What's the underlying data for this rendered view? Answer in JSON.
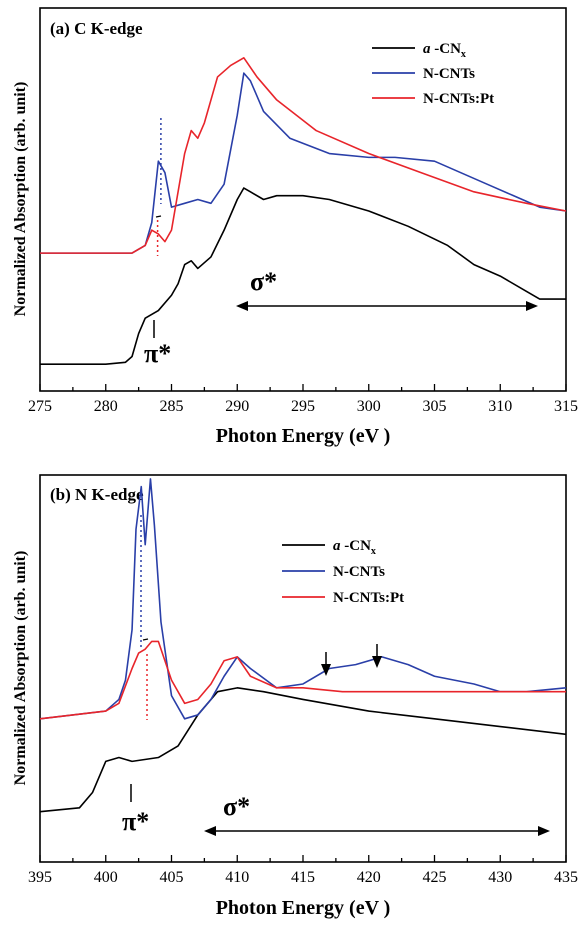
{
  "chart_data": [
    {
      "type": "line",
      "panel_label": "(a) C K-edge",
      "xlabel": "Photon Energy (eV )",
      "ylabel": "Normalized Absorption (arb. unit)",
      "xlim": [
        275,
        315
      ],
      "ylim": [
        0,
        1
      ],
      "xticks": [
        "275",
        "280",
        "285",
        "290",
        "295",
        "300",
        "305",
        "310",
        "315"
      ],
      "grid": false,
      "legend_position": "top-right",
      "annotations": {
        "pi_star": "π*",
        "sigma_star": "σ*"
      },
      "series": [
        {
          "name": "a -CNx",
          "color": "#000000",
          "x": [
            275,
            280,
            281.5,
            282,
            282.5,
            283,
            284,
            285,
            285.5,
            286,
            286.5,
            287,
            288,
            289,
            290,
            290.5,
            291,
            292,
            293,
            295,
            297,
            300,
            303,
            306,
            308,
            310,
            312,
            313,
            314,
            315
          ],
          "y": [
            0.07,
            0.07,
            0.075,
            0.09,
            0.15,
            0.19,
            0.21,
            0.25,
            0.28,
            0.33,
            0.34,
            0.32,
            0.35,
            0.42,
            0.5,
            0.53,
            0.52,
            0.5,
            0.51,
            0.51,
            0.5,
            0.47,
            0.43,
            0.38,
            0.33,
            0.3,
            0.26,
            0.24,
            0.24,
            0.24
          ]
        },
        {
          "name": "N-CNTs",
          "color": "#2a3fa8",
          "x": [
            275,
            282,
            283,
            283.5,
            284,
            284.5,
            285,
            286,
            287,
            288,
            289,
            290,
            290.5,
            291,
            292,
            294,
            297,
            300,
            302,
            305,
            307,
            309,
            311,
            313,
            315
          ],
          "y": [
            0.36,
            0.36,
            0.38,
            0.44,
            0.6,
            0.57,
            0.48,
            0.49,
            0.5,
            0.49,
            0.54,
            0.72,
            0.83,
            0.81,
            0.73,
            0.66,
            0.62,
            0.61,
            0.61,
            0.6,
            0.57,
            0.54,
            0.51,
            0.48,
            0.47
          ]
        },
        {
          "name": "N-CNTs:Pt",
          "color": "#e8252b",
          "x": [
            275,
            282,
            283,
            283.5,
            284,
            284.5,
            285,
            286,
            286.5,
            287,
            287.5,
            288.5,
            289.5,
            290.5,
            291.5,
            293,
            296,
            300,
            304,
            308,
            312,
            315
          ],
          "y": [
            0.36,
            0.36,
            0.38,
            0.42,
            0.41,
            0.39,
            0.42,
            0.62,
            0.68,
            0.66,
            0.7,
            0.82,
            0.85,
            0.87,
            0.82,
            0.76,
            0.68,
            0.62,
            0.57,
            0.52,
            0.49,
            0.47
          ]
        }
      ]
    },
    {
      "type": "line",
      "panel_label": "(b) N K-edge",
      "xlabel": "Photon Energy (eV )",
      "ylabel": "Normalized Absorption (arb. unit)",
      "xlim": [
        395,
        435
      ],
      "ylim": [
        0,
        1
      ],
      "xticks": [
        "395",
        "400",
        "405",
        "410",
        "415",
        "420",
        "425",
        "430",
        "435"
      ],
      "grid": false,
      "legend_position": "top-right",
      "annotations": {
        "pi_star": "π*",
        "sigma_star": "σ*"
      },
      "series": [
        {
          "name": "a -CNx",
          "color": "#000000",
          "x": [
            395,
            398,
            399,
            400,
            401,
            402,
            404,
            405.5,
            407,
            408.5,
            410,
            412,
            415,
            420,
            425,
            430,
            435
          ],
          "y": [
            0.13,
            0.14,
            0.18,
            0.26,
            0.27,
            0.26,
            0.27,
            0.3,
            0.38,
            0.44,
            0.45,
            0.44,
            0.42,
            0.39,
            0.37,
            0.35,
            0.33
          ]
        },
        {
          "name": "N-CNTs",
          "color": "#2a3fa8",
          "x": [
            395,
            400,
            401,
            401.5,
            402,
            402.3,
            402.7,
            403,
            403.4,
            403.7,
            404.2,
            405,
            406,
            407,
            408,
            409,
            410,
            411,
            413,
            415,
            417,
            419,
            421,
            423,
            425,
            428,
            430,
            432,
            435
          ],
          "y": [
            0.37,
            0.39,
            0.42,
            0.47,
            0.6,
            0.86,
            0.97,
            0.82,
            0.99,
            0.87,
            0.62,
            0.43,
            0.37,
            0.38,
            0.42,
            0.48,
            0.53,
            0.5,
            0.45,
            0.46,
            0.5,
            0.51,
            0.53,
            0.51,
            0.48,
            0.46,
            0.44,
            0.44,
            0.45
          ]
        },
        {
          "name": "N-CNTs:Pt",
          "color": "#e8252b",
          "x": [
            395,
            400,
            401,
            402,
            402.5,
            403,
            403.5,
            404,
            405,
            406,
            407,
            408,
            409,
            410,
            411,
            413,
            415,
            418,
            420,
            425,
            430,
            435
          ],
          "y": [
            0.37,
            0.39,
            0.41,
            0.5,
            0.54,
            0.55,
            0.57,
            0.57,
            0.47,
            0.41,
            0.42,
            0.46,
            0.52,
            0.53,
            0.48,
            0.45,
            0.45,
            0.44,
            0.44,
            0.44,
            0.44,
            0.44
          ]
        }
      ]
    }
  ]
}
